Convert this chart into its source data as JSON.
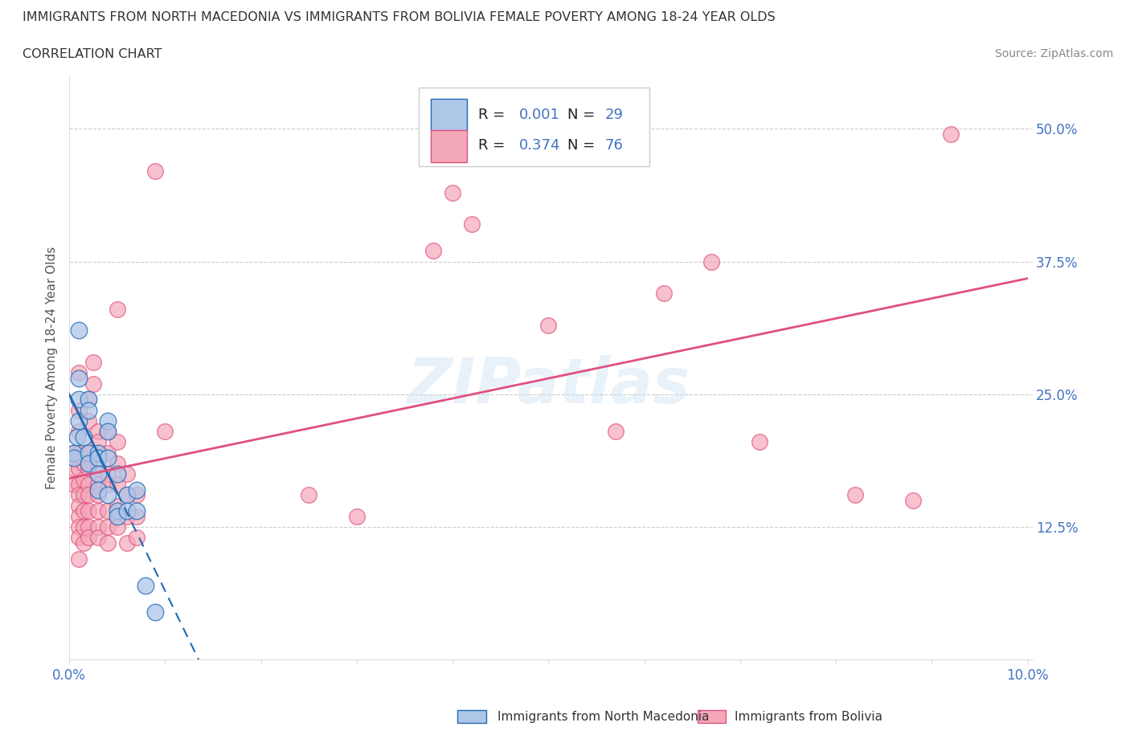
{
  "title": "IMMIGRANTS FROM NORTH MACEDONIA VS IMMIGRANTS FROM BOLIVIA FEMALE POVERTY AMONG 18-24 YEAR OLDS",
  "subtitle": "CORRELATION CHART",
  "source": "Source: ZipAtlas.com",
  "ylabel": "Female Poverty Among 18-24 Year Olds",
  "xlim": [
    0.0,
    0.1
  ],
  "ylim": [
    0.0,
    0.55
  ],
  "r_macedonia": 0.001,
  "n_macedonia": 29,
  "r_bolivia": 0.374,
  "n_bolivia": 76,
  "color_macedonia": "#aec6e8",
  "color_bolivia": "#f4a7b9",
  "line_color_macedonia": "#1f6ab5",
  "line_color_bolivia": "#e05080",
  "background_color": "#ffffff",
  "macedonia_scatter": [
    [
      0.0005,
      0.195
    ],
    [
      0.0005,
      0.19
    ],
    [
      0.0008,
      0.21
    ],
    [
      0.001,
      0.31
    ],
    [
      0.001,
      0.265
    ],
    [
      0.001,
      0.245
    ],
    [
      0.001,
      0.225
    ],
    [
      0.0015,
      0.21
    ],
    [
      0.002,
      0.245
    ],
    [
      0.002,
      0.235
    ],
    [
      0.002,
      0.195
    ],
    [
      0.002,
      0.185
    ],
    [
      0.003,
      0.195
    ],
    [
      0.003,
      0.19
    ],
    [
      0.003,
      0.175
    ],
    [
      0.003,
      0.16
    ],
    [
      0.004,
      0.225
    ],
    [
      0.004,
      0.215
    ],
    [
      0.004,
      0.19
    ],
    [
      0.004,
      0.155
    ],
    [
      0.005,
      0.175
    ],
    [
      0.005,
      0.14
    ],
    [
      0.005,
      0.135
    ],
    [
      0.006,
      0.155
    ],
    [
      0.006,
      0.14
    ],
    [
      0.007,
      0.16
    ],
    [
      0.007,
      0.14
    ],
    [
      0.008,
      0.07
    ],
    [
      0.009,
      0.045
    ]
  ],
  "bolivia_scatter": [
    [
      0.0005,
      0.195
    ],
    [
      0.0005,
      0.18
    ],
    [
      0.0005,
      0.165
    ],
    [
      0.001,
      0.27
    ],
    [
      0.001,
      0.235
    ],
    [
      0.001,
      0.215
    ],
    [
      0.001,
      0.195
    ],
    [
      0.001,
      0.18
    ],
    [
      0.001,
      0.165
    ],
    [
      0.001,
      0.155
    ],
    [
      0.001,
      0.145
    ],
    [
      0.001,
      0.135
    ],
    [
      0.001,
      0.125
    ],
    [
      0.001,
      0.115
    ],
    [
      0.001,
      0.095
    ],
    [
      0.0015,
      0.185
    ],
    [
      0.0015,
      0.17
    ],
    [
      0.0015,
      0.155
    ],
    [
      0.0015,
      0.14
    ],
    [
      0.0015,
      0.125
    ],
    [
      0.0015,
      0.11
    ],
    [
      0.002,
      0.245
    ],
    [
      0.002,
      0.225
    ],
    [
      0.002,
      0.195
    ],
    [
      0.002,
      0.18
    ],
    [
      0.002,
      0.165
    ],
    [
      0.002,
      0.155
    ],
    [
      0.002,
      0.14
    ],
    [
      0.002,
      0.125
    ],
    [
      0.002,
      0.115
    ],
    [
      0.0025,
      0.28
    ],
    [
      0.0025,
      0.26
    ],
    [
      0.003,
      0.215
    ],
    [
      0.003,
      0.205
    ],
    [
      0.003,
      0.195
    ],
    [
      0.003,
      0.18
    ],
    [
      0.003,
      0.165
    ],
    [
      0.003,
      0.155
    ],
    [
      0.003,
      0.14
    ],
    [
      0.003,
      0.125
    ],
    [
      0.003,
      0.115
    ],
    [
      0.004,
      0.215
    ],
    [
      0.004,
      0.195
    ],
    [
      0.004,
      0.175
    ],
    [
      0.004,
      0.165
    ],
    [
      0.004,
      0.14
    ],
    [
      0.004,
      0.125
    ],
    [
      0.004,
      0.11
    ],
    [
      0.005,
      0.33
    ],
    [
      0.005,
      0.205
    ],
    [
      0.005,
      0.185
    ],
    [
      0.005,
      0.165
    ],
    [
      0.005,
      0.145
    ],
    [
      0.005,
      0.125
    ],
    [
      0.006,
      0.175
    ],
    [
      0.006,
      0.155
    ],
    [
      0.006,
      0.135
    ],
    [
      0.006,
      0.11
    ],
    [
      0.007,
      0.155
    ],
    [
      0.007,
      0.135
    ],
    [
      0.007,
      0.115
    ],
    [
      0.009,
      0.46
    ],
    [
      0.01,
      0.215
    ],
    [
      0.025,
      0.155
    ],
    [
      0.03,
      0.135
    ],
    [
      0.038,
      0.385
    ],
    [
      0.04,
      0.44
    ],
    [
      0.042,
      0.41
    ],
    [
      0.05,
      0.315
    ],
    [
      0.057,
      0.215
    ],
    [
      0.062,
      0.345
    ],
    [
      0.067,
      0.375
    ],
    [
      0.072,
      0.205
    ],
    [
      0.082,
      0.155
    ],
    [
      0.088,
      0.15
    ],
    [
      0.092,
      0.495
    ]
  ]
}
